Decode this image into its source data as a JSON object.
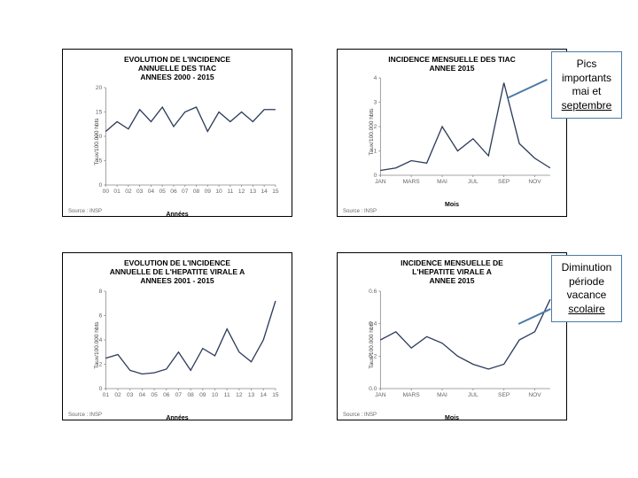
{
  "common": {
    "y_axis_label": "Taux/100.000 hbts",
    "source": "Source : INSP",
    "line_color": "#2b3a5a",
    "axis_color": "#888888",
    "tick_text_color": "#666666",
    "callout_border": "#4a7ba6"
  },
  "charts": [
    {
      "id": "tiac_annual",
      "title_lines": [
        "EVOLUTION DE L'INCIDENCE",
        "ANNUELLE DES TIAC",
        "ANNEES 2000 - 2015"
      ],
      "x_label": "Années",
      "ylim": [
        0,
        20
      ],
      "ytick_step": 5,
      "categories": [
        "00",
        "01",
        "02",
        "03",
        "04",
        "05",
        "06",
        "07",
        "08",
        "09",
        "10",
        "11",
        "12",
        "13",
        "14",
        "15"
      ],
      "values": [
        11,
        13,
        11.5,
        15.5,
        13,
        16,
        12,
        15,
        16,
        11,
        15,
        13,
        15,
        13,
        15.5,
        15.5
      ]
    },
    {
      "id": "tiac_monthly",
      "title_lines": [
        "INCIDENCE MENSUELLE DES TIAC",
        "ANNEE 2015"
      ],
      "x_label": "Mois",
      "ylim": [
        0,
        4
      ],
      "ytick_step": 1,
      "categories": [
        "JAN",
        "",
        "MARS",
        "",
        "MAI",
        "",
        "JUL",
        "",
        "SEP",
        "",
        "NOV",
        ""
      ],
      "values": [
        0.2,
        0.3,
        0.6,
        0.5,
        2.0,
        1.0,
        1.5,
        0.8,
        3.8,
        1.3,
        0.7,
        0.3
      ]
    },
    {
      "id": "hepa_annual",
      "title_lines": [
        "EVOLUTION DE L'INCIDENCE",
        "ANNUELLE DE L'HEPATITE VIRALE A",
        "ANNEES  2001 - 2015"
      ],
      "x_label": "Années",
      "ylim": [
        0,
        8
      ],
      "ytick_step": 2,
      "categories": [
        "01",
        "02",
        "03",
        "04",
        "05",
        "06",
        "07",
        "08",
        "09",
        "10",
        "11",
        "12",
        "13",
        "14",
        "15"
      ],
      "values": [
        2.5,
        2.8,
        1.5,
        1.2,
        1.3,
        1.6,
        3.0,
        1.5,
        3.3,
        2.7,
        4.9,
        3.0,
        2.2,
        4.0,
        7.2
      ]
    },
    {
      "id": "hepa_monthly",
      "title_lines": [
        "INCIDENCE MENSUELLE DE",
        "L'HEPATITE VIRALE A",
        "ANNEE 2015"
      ],
      "x_label": "Mois",
      "ylim": [
        0,
        0.6
      ],
      "ytick_step": 0.2,
      "categories": [
        "JAN",
        "",
        "MARS",
        "",
        "MAI",
        "",
        "JUL",
        "",
        "SEP",
        "",
        "NOV",
        ""
      ],
      "values": [
        0.3,
        0.35,
        0.25,
        0.32,
        0.28,
        0.2,
        0.15,
        0.12,
        0.15,
        0.3,
        0.35,
        0.55
      ]
    }
  ],
  "callouts": [
    {
      "lines": [
        "Pics",
        "importants",
        "mai et",
        "septembre"
      ],
      "underline_last": true
    },
    {
      "lines": [
        "Diminution",
        "période",
        "vacance",
        "scolaire"
      ],
      "underline_last": true
    }
  ]
}
